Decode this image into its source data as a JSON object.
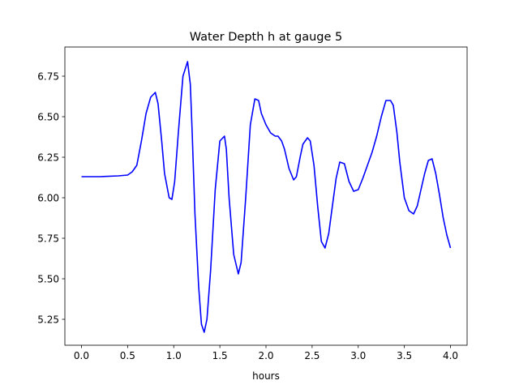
{
  "chart_data": {
    "type": "line",
    "title": "Water Depth h at gauge 5",
    "xlabel": "hours",
    "ylabel": "",
    "xlim": [
      -0.18,
      4.18
    ],
    "ylim": [
      5.09,
      6.93
    ],
    "xticks": [
      0.0,
      0.5,
      1.0,
      1.5,
      2.0,
      2.5,
      3.0,
      3.5,
      4.0
    ],
    "xtick_labels": [
      "0.0",
      "0.5",
      "1.0",
      "1.5",
      "2.0",
      "2.5",
      "3.0",
      "3.5",
      "4.0"
    ],
    "yticks": [
      5.25,
      5.5,
      5.75,
      6.0,
      6.25,
      6.5,
      6.75
    ],
    "ytick_labels": [
      "5.25",
      "5.50",
      "5.75",
      "6.00",
      "6.25",
      "6.50",
      "6.75"
    ],
    "grid": false,
    "series": [
      {
        "color": "#0000ff",
        "x": [
          0.0,
          0.2,
          0.4,
          0.5,
          0.55,
          0.6,
          0.65,
          0.7,
          0.75,
          0.8,
          0.83,
          0.87,
          0.9,
          0.95,
          0.98,
          1.01,
          1.05,
          1.1,
          1.15,
          1.18,
          1.2,
          1.23,
          1.27,
          1.3,
          1.33,
          1.36,
          1.4,
          1.45,
          1.5,
          1.55,
          1.57,
          1.6,
          1.65,
          1.7,
          1.73,
          1.78,
          1.83,
          1.88,
          1.92,
          1.95,
          2.0,
          2.05,
          2.1,
          2.13,
          2.17,
          2.2,
          2.25,
          2.3,
          2.33,
          2.37,
          2.4,
          2.45,
          2.48,
          2.52,
          2.56,
          2.6,
          2.64,
          2.68,
          2.72,
          2.76,
          2.8,
          2.85,
          2.9,
          2.95,
          3.0,
          3.05,
          3.1,
          3.15,
          3.2,
          3.25,
          3.3,
          3.35,
          3.38,
          3.42,
          3.45,
          3.5,
          3.55,
          3.6,
          3.64,
          3.68,
          3.72,
          3.76,
          3.8,
          3.84,
          3.88,
          3.92,
          3.96,
          4.0
        ],
        "values": [
          6.13,
          6.13,
          6.135,
          6.14,
          6.16,
          6.2,
          6.35,
          6.52,
          6.62,
          6.65,
          6.58,
          6.35,
          6.15,
          6.0,
          5.99,
          6.1,
          6.4,
          6.75,
          6.84,
          6.7,
          6.4,
          5.9,
          5.45,
          5.22,
          5.17,
          5.25,
          5.55,
          6.05,
          6.35,
          6.38,
          6.3,
          6.0,
          5.65,
          5.53,
          5.6,
          6.0,
          6.45,
          6.61,
          6.6,
          6.52,
          6.45,
          6.4,
          6.38,
          6.38,
          6.35,
          6.3,
          6.18,
          6.11,
          6.13,
          6.25,
          6.33,
          6.37,
          6.35,
          6.2,
          5.95,
          5.73,
          5.69,
          5.78,
          5.95,
          6.12,
          6.22,
          6.21,
          6.1,
          6.04,
          6.05,
          6.12,
          6.2,
          6.28,
          6.38,
          6.5,
          6.6,
          6.6,
          6.57,
          6.4,
          6.22,
          6.0,
          5.92,
          5.9,
          5.95,
          6.05,
          6.15,
          6.23,
          6.24,
          6.15,
          6.02,
          5.88,
          5.77,
          5.69
        ]
      }
    ]
  }
}
